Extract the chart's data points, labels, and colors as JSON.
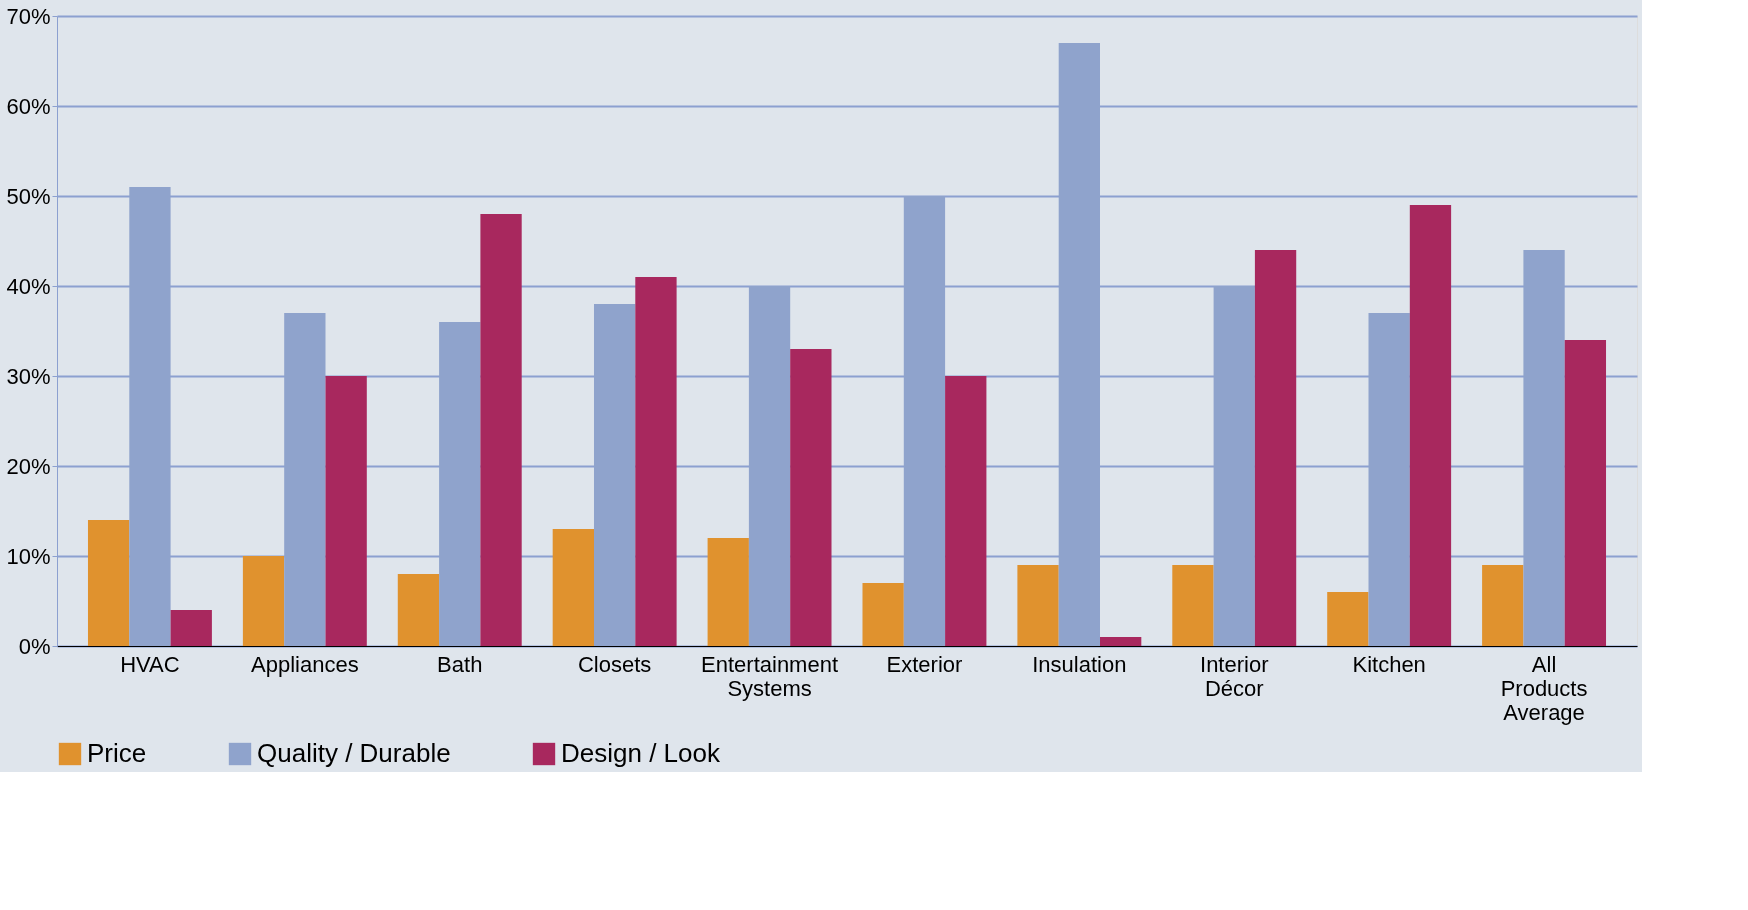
{
  "chart_data": {
    "type": "bar",
    "categories": [
      "HVAC",
      "Appliances",
      "Bath",
      "Closets",
      "Entertainment Systems",
      "Exterior",
      "Insulation",
      "Interior Décor",
      "Kitchen",
      "All Products Average"
    ],
    "series": [
      {
        "name": "Price",
        "color": "#e0922e",
        "values": [
          14,
          10,
          8,
          13,
          12,
          7,
          9,
          9,
          6,
          9
        ]
      },
      {
        "name": "Quality / Durable",
        "color": "#8fa3cc",
        "values": [
          51,
          37,
          36,
          38,
          40,
          50,
          67,
          40,
          37,
          44
        ]
      },
      {
        "name": "Design / Look",
        "color": "#a8285e",
        "values": [
          4,
          30,
          48,
          41,
          33,
          30,
          1,
          44,
          49,
          34
        ]
      }
    ],
    "ylim": [
      0,
      70
    ],
    "yticks": [
      {
        "value": 0,
        "label": "0%"
      },
      {
        "value": 10,
        "label": "10%"
      },
      {
        "value": 20,
        "label": "20%"
      },
      {
        "value": 30,
        "label": "30%"
      },
      {
        "value": 40,
        "label": "40%"
      },
      {
        "value": 50,
        "label": "50%"
      },
      {
        "value": 60,
        "label": "60%"
      },
      {
        "value": 70,
        "label": "70%"
      }
    ],
    "grid": "y",
    "legend": "bottom"
  }
}
